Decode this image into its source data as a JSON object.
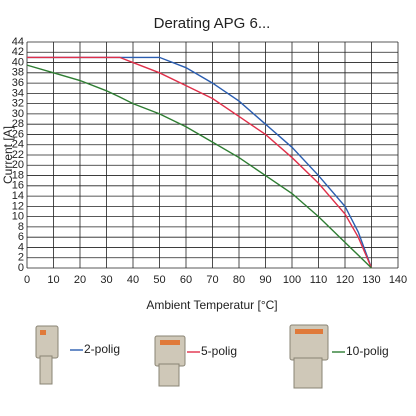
{
  "chart_data": {
    "type": "line",
    "title": "Derating APG 6...",
    "x_label": "Ambient Temperatur [°C]",
    "y_label": "Current [A]",
    "x": [
      0,
      10,
      20,
      30,
      35,
      40,
      50,
      60,
      70,
      80,
      90,
      100,
      110,
      120,
      125,
      130
    ],
    "series": [
      {
        "name": "2-polig",
        "color": "#2a5db0",
        "values": [
          41,
          41,
          41,
          41,
          41,
          41,
          41,
          39,
          36,
          32.5,
          28,
          23.5,
          18,
          12,
          7,
          0
        ]
      },
      {
        "name": "5-polig",
        "color": "#e0304a",
        "values": [
          41,
          41,
          41,
          41,
          41,
          40,
          38,
          35.5,
          33,
          29.5,
          26,
          21.5,
          16.5,
          10.5,
          6,
          0
        ]
      },
      {
        "name": "10-polig",
        "color": "#2e7d32",
        "values": [
          39.5,
          38,
          36.5,
          34.5,
          33.3,
          32,
          30,
          27.5,
          24.5,
          21.5,
          18,
          14.5,
          10,
          5,
          2.5,
          0
        ]
      }
    ],
    "xlim": [
      0,
      140
    ],
    "xticks": [
      0,
      10,
      20,
      30,
      40,
      50,
      60,
      70,
      80,
      90,
      100,
      110,
      120,
      130,
      140
    ],
    "ylim": [
      0,
      44
    ],
    "yticks": [
      0,
      2,
      4,
      6,
      8,
      10,
      12,
      14,
      16,
      18,
      20,
      22,
      24,
      26,
      28,
      30,
      32,
      34,
      36,
      38,
      40,
      42,
      44
    ],
    "grid": true
  }
}
